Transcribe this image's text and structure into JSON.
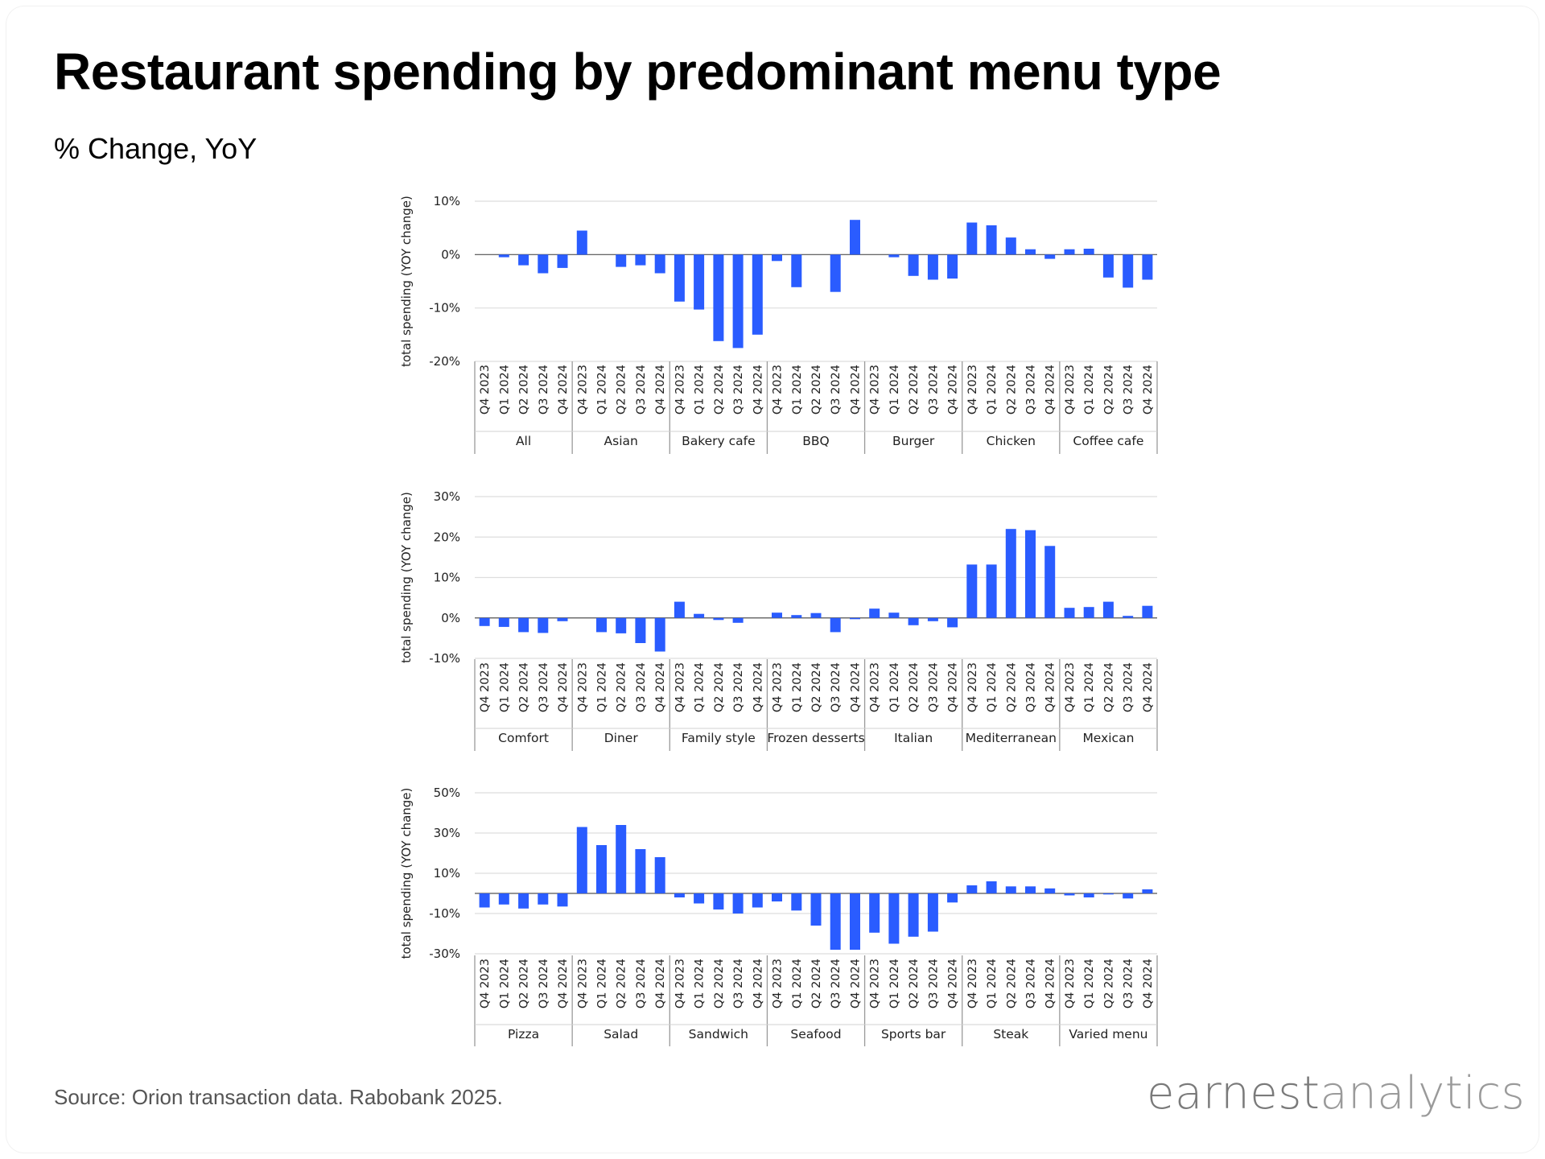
{
  "title": "Restaurant spending by predominant menu type",
  "subtitle": "% Change, YoY",
  "source": "Source: Orion transaction data. Rabobank 2025.",
  "logo": {
    "part_a": "earnest",
    "part_b": "analytics"
  },
  "colors": {
    "bar": "#2a5cff",
    "grid": "#dedede",
    "axis": "#9a9a9a",
    "text": "#222222"
  },
  "chart_data": [
    {
      "type": "bar",
      "ylabel": "total spending (YOY change)",
      "ylim": [
        -20,
        10
      ],
      "yticks": [
        10,
        0,
        -10,
        -20
      ],
      "ytick_labels": [
        "10%",
        "0%",
        "-10%",
        "-20%"
      ],
      "quarters": [
        "Q4 2023",
        "Q1 2024",
        "Q2 2024",
        "Q3 2024",
        "Q4 2024"
      ],
      "groups": [
        {
          "name": "All",
          "values": [
            0,
            -0.5,
            -2,
            -3.5,
            -2.5
          ]
        },
        {
          "name": "Asian",
          "values": [
            4.5,
            0,
            -2.3,
            -2,
            -3.5
          ]
        },
        {
          "name": "Bakery cafe",
          "values": [
            -8.8,
            -10.3,
            -16.2,
            -17.5,
            -15
          ]
        },
        {
          "name": "BBQ",
          "values": [
            -1.2,
            -6.1,
            0,
            -7,
            6.5
          ]
        },
        {
          "name": "Burger",
          "values": [
            0,
            -0.5,
            -4,
            -4.7,
            -4.5
          ]
        },
        {
          "name": "Chicken",
          "values": [
            6,
            5.5,
            3.2,
            1,
            -0.8
          ]
        },
        {
          "name": "Coffee cafe",
          "values": [
            1,
            1.1,
            -4.3,
            -6.2,
            -4.7
          ]
        }
      ]
    },
    {
      "type": "bar",
      "ylabel": "total spending (YOY change)",
      "ylim": [
        -10,
        30
      ],
      "yticks": [
        30,
        20,
        10,
        0,
        -10
      ],
      "ytick_labels": [
        "30%",
        "20%",
        "10%",
        "0%",
        "-10%"
      ],
      "quarters": [
        "Q4 2023",
        "Q1 2024",
        "Q2 2024",
        "Q3 2024",
        "Q4 2024"
      ],
      "groups": [
        {
          "name": "Comfort",
          "values": [
            -2,
            -2.2,
            -3.5,
            -3.7,
            -0.8
          ]
        },
        {
          "name": "Diner",
          "values": [
            0,
            -3.5,
            -3.8,
            -6.2,
            -8.3
          ]
        },
        {
          "name": "Family style",
          "values": [
            4,
            1,
            -0.5,
            -1.2,
            0
          ]
        },
        {
          "name": "Frozen desserts",
          "values": [
            1.3,
            0.7,
            1.2,
            -3.5,
            -0.3
          ]
        },
        {
          "name": "Italian",
          "values": [
            2.3,
            1.3,
            -1.8,
            -0.8,
            -2.3
          ]
        },
        {
          "name": "Mediterranean",
          "values": [
            13.2,
            13.2,
            22,
            21.7,
            17.8
          ]
        },
        {
          "name": "Mexican",
          "values": [
            2.5,
            2.7,
            4,
            0.5,
            3
          ]
        }
      ]
    },
    {
      "type": "bar",
      "ylabel": "total spending (YOY change)",
      "ylim": [
        -30,
        50
      ],
      "yticks": [
        50,
        30,
        10,
        -10,
        -30
      ],
      "ytick_labels": [
        "50%",
        "30%",
        "10%",
        "-10%",
        "-30%"
      ],
      "quarters": [
        "Q4 2023",
        "Q1 2024",
        "Q2 2024",
        "Q3 2024",
        "Q4 2024"
      ],
      "groups": [
        {
          "name": "Pizza",
          "values": [
            -7,
            -5.5,
            -7.5,
            -5.5,
            -6.5
          ]
        },
        {
          "name": "Salad",
          "values": [
            33,
            24,
            34,
            22,
            18
          ]
        },
        {
          "name": "Sandwich",
          "values": [
            -2,
            -5,
            -8,
            -10,
            -7
          ]
        },
        {
          "name": "Seafood",
          "values": [
            -4,
            -8.5,
            -16,
            -28,
            -28
          ]
        },
        {
          "name": "Sports bar",
          "values": [
            -19.5,
            -25,
            -21.5,
            -19,
            -4.5
          ]
        },
        {
          "name": "Steak",
          "values": [
            4,
            6,
            3.5,
            3.5,
            2.5
          ]
        },
        {
          "name": "Varied menu",
          "values": [
            -1,
            -2,
            -0.5,
            -2.5,
            2
          ]
        }
      ]
    }
  ]
}
